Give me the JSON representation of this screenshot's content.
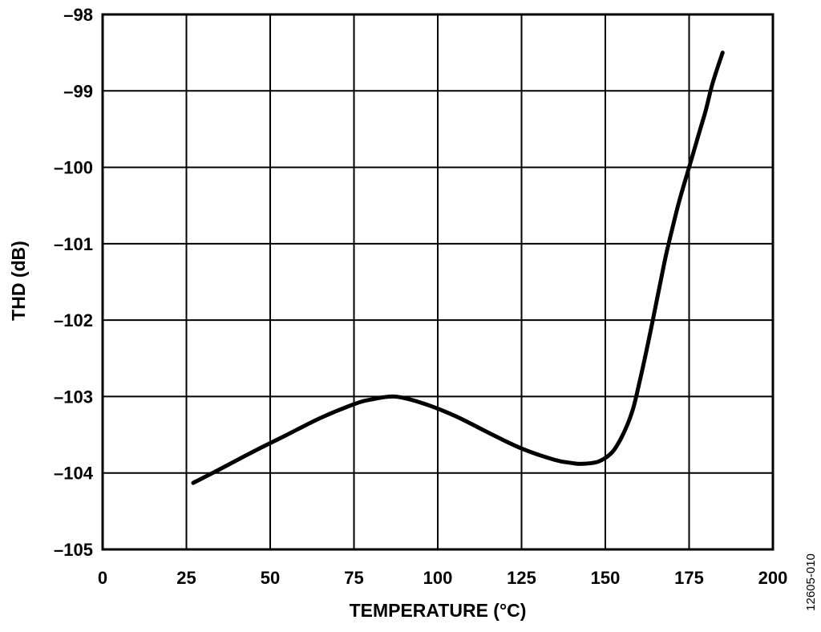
{
  "chart_data": {
    "type": "line",
    "title": "",
    "xlabel": "TEMPERATURE (°C)",
    "ylabel": "THD (dB)",
    "xlim": [
      0,
      200
    ],
    "ylim": [
      -105,
      -98
    ],
    "xticks": [
      0,
      25,
      50,
      75,
      100,
      125,
      150,
      175,
      200
    ],
    "yticks": [
      -98,
      -99,
      -100,
      -101,
      -102,
      -103,
      -104,
      -105
    ],
    "xtick_labels": [
      "0",
      "25",
      "50",
      "75",
      "100",
      "125",
      "150",
      "175",
      "200"
    ],
    "ytick_labels": [
      "–98",
      "–99",
      "–100",
      "–101",
      "–102",
      "–103",
      "–104",
      "–105"
    ],
    "grid": true,
    "series": [
      {
        "color": "#000000",
        "x": [
          27,
          35,
          45,
          55,
          65,
          75,
          80,
          87,
          95,
          105,
          115,
          125,
          135,
          140,
          143,
          148,
          152,
          155,
          158,
          160,
          163,
          166,
          168,
          170,
          172,
          175,
          178,
          180,
          182,
          185
        ],
        "y": [
          -104.13,
          -103.95,
          -103.72,
          -103.5,
          -103.28,
          -103.1,
          -103.04,
          -103.0,
          -103.08,
          -103.25,
          -103.47,
          -103.68,
          -103.83,
          -103.87,
          -103.88,
          -103.85,
          -103.73,
          -103.52,
          -103.2,
          -102.85,
          -102.25,
          -101.6,
          -101.17,
          -100.8,
          -100.45,
          -100.0,
          -99.55,
          -99.25,
          -98.9,
          -98.5
        ]
      }
    ]
  },
  "figure_id": "12605-010"
}
